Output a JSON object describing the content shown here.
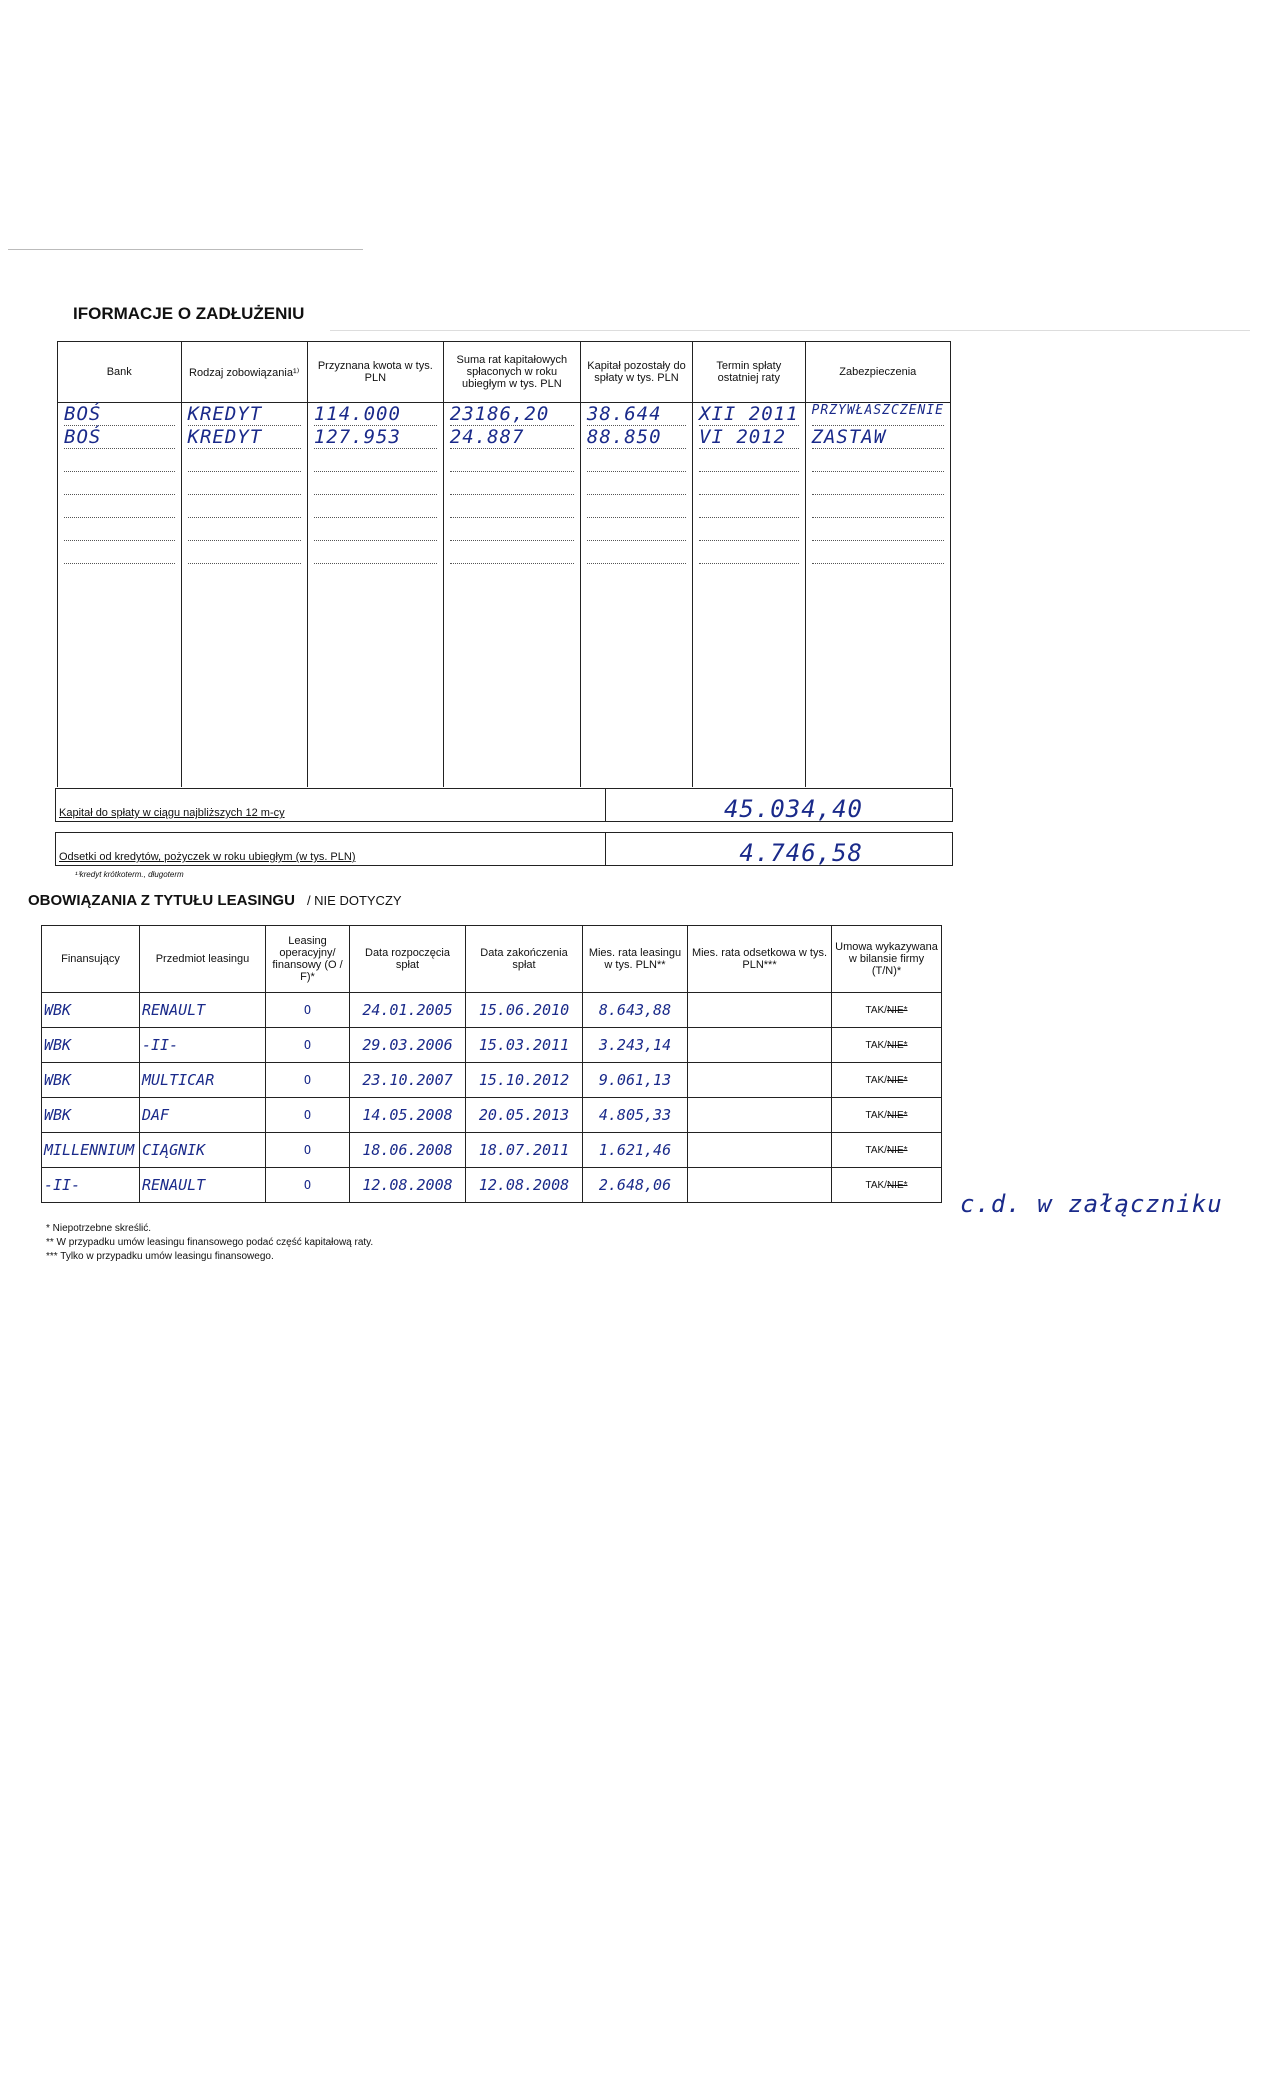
{
  "section1": {
    "title": "IFORMACJE O ZADŁUŻENIU",
    "headers": [
      "Bank",
      "Rodzaj zobowiązania¹⁾",
      "Przyznana kwota w tys. PLN",
      "Suma rat kapitałowych spłaconych w roku ubiegłym w tys. PLN",
      "Kapitał pozostały do spłaty w tys. PLN",
      "Termin spłaty ostatniej raty",
      "Zabezpieczenia"
    ],
    "rows": [
      [
        "BOŚ",
        "KREDYT",
        "114.000",
        "23186,20",
        "38.644",
        "XII 2011",
        "PRZYWŁASZCZENIE"
      ],
      [
        "BOŚ",
        "KREDYT",
        "127.953",
        "24.887",
        "88.850",
        "VI 2012",
        "ZASTAW"
      ]
    ],
    "capital_12m_label": "Kapitał do spłaty w ciągu najbliższych 12 m-cy",
    "capital_12m_value": "45.034,40",
    "interest_label": "Odsetki od kredytów, pożyczek w roku ubiegłym (w tys. PLN)",
    "interest_value": "4.746,58",
    "footnote": "¹⁾kredyt krótkoterm., długoterm"
  },
  "section2": {
    "title": "OBOWIĄZANIA Z TYTUŁU LEASINGU",
    "subtitle": "/  NIE DOTYCZY",
    "headers": [
      "Finansujący",
      "Przedmiot leasingu",
      "Leasing operacyjny/ finansowy (O / F)*",
      "Data rozpoczęcia spłat",
      "Data zakończenia spłat",
      "Mies. rata leasingu w tys. PLN**",
      "Mies. rata odsetkowa w tys. PLN***",
      "Umowa wykazywana w bilansie firmy (T/N)*"
    ],
    "tak": "TAK/",
    "nie": "NIE*",
    "rows": [
      [
        "WBK",
        "RENAULT",
        "O",
        "24.01.2005",
        "15.06.2010",
        "8.643,88",
        ""
      ],
      [
        "WBK",
        "-II-",
        "O",
        "29.03.2006",
        "15.03.2011",
        "3.243,14",
        ""
      ],
      [
        "WBK",
        "MULTICAR",
        "O",
        "23.10.2007",
        "15.10.2012",
        "9.061,13",
        ""
      ],
      [
        "WBK",
        "DAF",
        "O",
        "14.05.2008",
        "20.05.2013",
        "4.805,33",
        ""
      ],
      [
        "MILLENNIUM",
        "CIĄGNIK",
        "O",
        "18.06.2008",
        "18.07.2011",
        "1.621,46",
        ""
      ],
      [
        "-II-",
        "RENAULT",
        "O",
        "12.08.2008",
        "12.08.2008",
        "2.648,06",
        ""
      ]
    ],
    "footnotes": [
      "*   Niepotrzebne skreślić.",
      "**  W przypadku umów leasingu finansowego podać część kapitałową raty.",
      "*** Tylko w przypadku umów leasingu finansowego."
    ],
    "note": "c.d. w załączniku"
  }
}
